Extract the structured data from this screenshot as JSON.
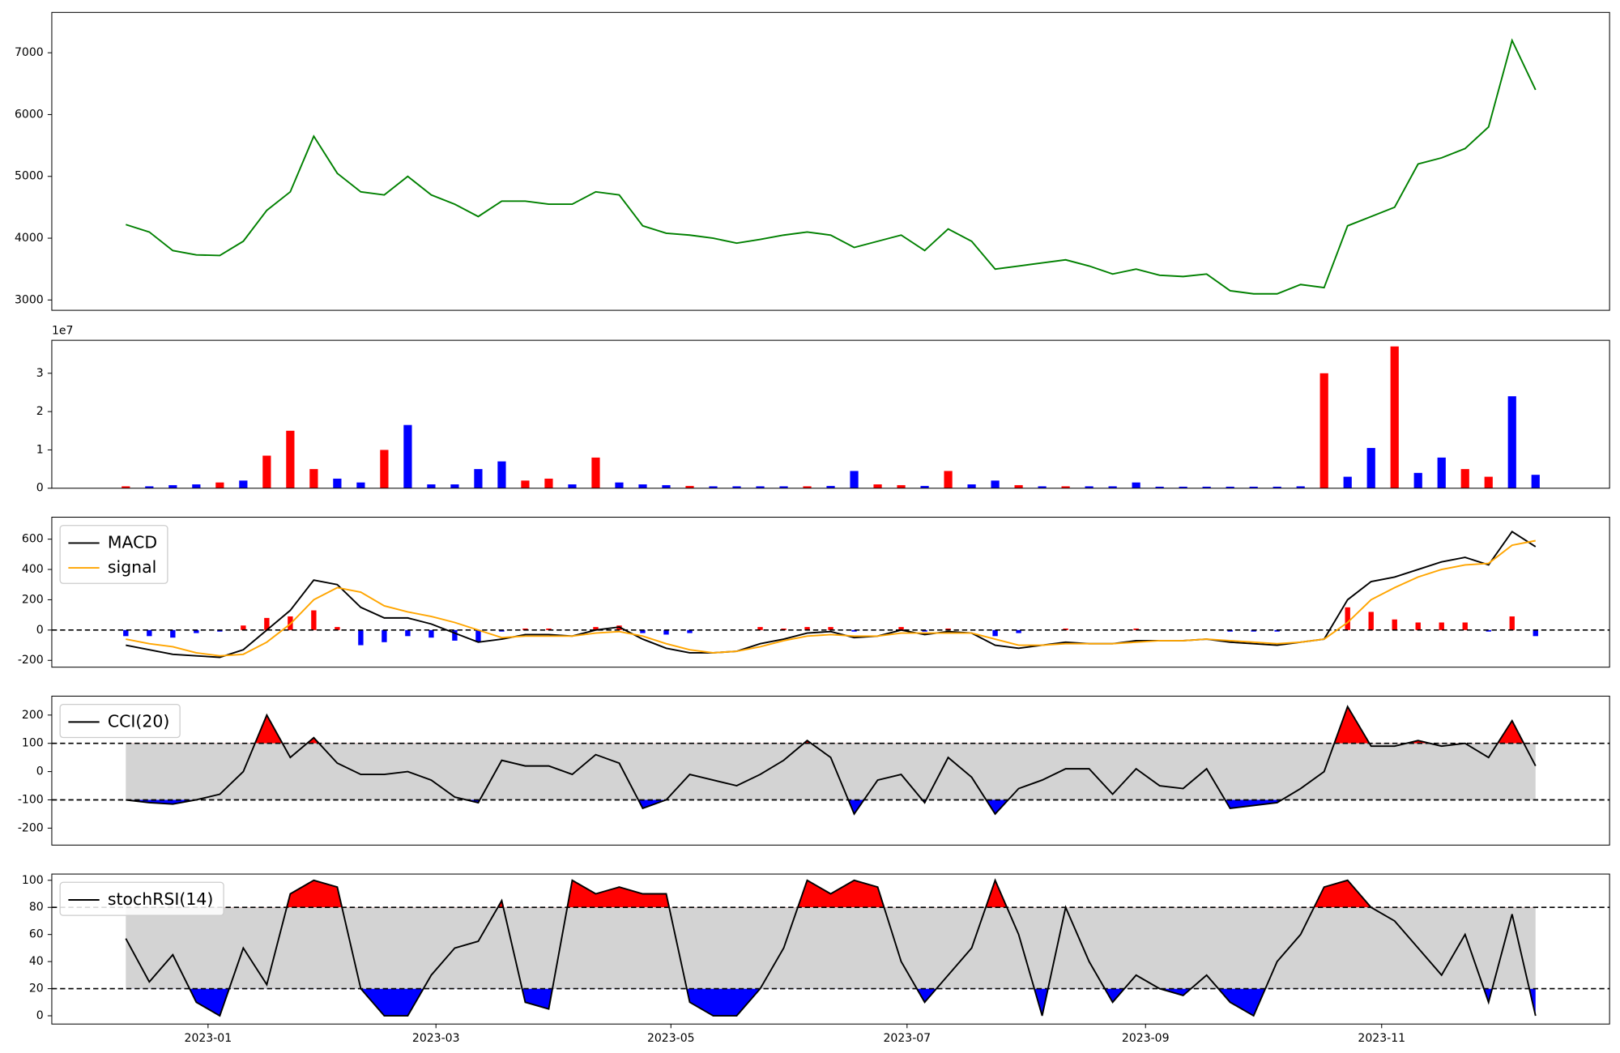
{
  "chart_data": [
    {
      "type": "line",
      "color": "green",
      "x": [
        -0.7,
        -0.5,
        -0.3,
        -0.1,
        0.1,
        0.3,
        0.5,
        0.7,
        0.9,
        1.1,
        1.3,
        1.5,
        1.7,
        1.9,
        2.1,
        2.3,
        2.5,
        2.7,
        2.9,
        3.1,
        3.3,
        3.5,
        3.7,
        3.9,
        4.1,
        4.3,
        4.5,
        4.7,
        4.9,
        5.1,
        5.3,
        5.5,
        5.7,
        5.9,
        6.1,
        6.3,
        6.5,
        6.7,
        6.9,
        7.1,
        7.3,
        7.5,
        7.7,
        7.9,
        8.1,
        8.3,
        8.5,
        8.7,
        8.9,
        9.1,
        9.3,
        9.5,
        9.7,
        9.9,
        10.1,
        10.3,
        10.5,
        10.7,
        10.9,
        11.1,
        11.3
      ],
      "values": [
        4220,
        4100,
        3800,
        3730,
        3720,
        3950,
        4450,
        4750,
        5650,
        5050,
        4750,
        4700,
        5000,
        4700,
        4550,
        4350,
        4600,
        4600,
        4550,
        4550,
        4750,
        4700,
        4200,
        4080,
        4050,
        4000,
        3920,
        3980,
        4050,
        4100,
        4050,
        3850,
        3950,
        4050,
        3800,
        4150,
        3950,
        3500,
        3550,
        3600,
        3650,
        3550,
        3420,
        3500,
        3400,
        3380,
        3420,
        3150,
        3100,
        3100,
        3250,
        3200,
        4200,
        4350,
        4500,
        5200,
        5300,
        5450,
        5800,
        7200,
        6400
      ],
      "xlim": [
        -1.33,
        11.93
      ],
      "ylim": [
        2833,
        7653
      ],
      "yticks": [
        3000,
        4000,
        5000,
        6000,
        7000
      ]
    },
    {
      "type": "bar",
      "offset_label": "1e7",
      "x": [
        -0.7,
        -0.5,
        -0.3,
        -0.1,
        0.1,
        0.3,
        0.5,
        0.7,
        0.9,
        1.1,
        1.3,
        1.5,
        1.7,
        1.9,
        2.1,
        2.3,
        2.5,
        2.7,
        2.9,
        3.1,
        3.3,
        3.5,
        3.7,
        3.9,
        4.1,
        4.3,
        4.5,
        4.7,
        4.9,
        5.1,
        5.3,
        5.5,
        5.7,
        5.9,
        6.1,
        6.3,
        6.5,
        6.7,
        6.9,
        7.1,
        7.3,
        7.5,
        7.7,
        7.9,
        8.1,
        8.3,
        8.5,
        8.7,
        8.9,
        9.1,
        9.3,
        9.5,
        9.7,
        9.9,
        10.1,
        10.3,
        10.5,
        10.7,
        10.9,
        11.1,
        11.3
      ],
      "values": [
        0.05,
        0.05,
        0.08,
        0.1,
        0.15,
        0.2,
        0.85,
        1.5,
        0.5,
        0.25,
        0.15,
        1.0,
        1.65,
        0.1,
        0.1,
        0.5,
        0.7,
        0.2,
        0.25,
        0.1,
        0.8,
        0.15,
        0.1,
        0.08,
        0.06,
        0.05,
        0.05,
        0.05,
        0.05,
        0.05,
        0.06,
        0.45,
        0.1,
        0.08,
        0.06,
        0.45,
        0.1,
        0.2,
        0.08,
        0.05,
        0.05,
        0.05,
        0.05,
        0.15,
        0.04,
        0.04,
        0.04,
        0.04,
        0.04,
        0.04,
        0.05,
        3.0,
        0.3,
        1.05,
        3.7,
        0.4,
        0.8,
        0.5,
        0.3,
        2.4,
        0.35
      ],
      "colors": [
        "red",
        "blue",
        "blue",
        "blue",
        "red",
        "blue",
        "red",
        "red",
        "red",
        "blue",
        "blue",
        "red",
        "blue",
        "blue",
        "blue",
        "blue",
        "blue",
        "red",
        "red",
        "blue",
        "red",
        "blue",
        "blue",
        "blue",
        "red",
        "blue",
        "blue",
        "blue",
        "blue",
        "red",
        "blue",
        "blue",
        "red",
        "red",
        "blue",
        "red",
        "blue",
        "blue",
        "red",
        "blue",
        "red",
        "blue",
        "blue",
        "blue",
        "blue",
        "blue",
        "blue",
        "blue",
        "blue",
        "blue",
        "blue",
        "red",
        "blue",
        "blue",
        "red",
        "blue",
        "blue",
        "red",
        "red",
        "blue",
        "blue"
      ],
      "xlim": [
        -1.33,
        11.93
      ],
      "ylim": [
        0,
        3.86
      ],
      "yticks": [
        0,
        1,
        2,
        3
      ]
    },
    {
      "type": "line",
      "legend": "upper left",
      "hlines": [
        0
      ],
      "x": [
        -0.7,
        -0.5,
        -0.3,
        -0.1,
        0.1,
        0.3,
        0.5,
        0.7,
        0.9,
        1.1,
        1.3,
        1.5,
        1.7,
        1.9,
        2.1,
        2.3,
        2.5,
        2.7,
        2.9,
        3.1,
        3.3,
        3.5,
        3.7,
        3.9,
        4.1,
        4.3,
        4.5,
        4.7,
        4.9,
        5.1,
        5.3,
        5.5,
        5.7,
        5.9,
        6.1,
        6.3,
        6.5,
        6.7,
        6.9,
        7.1,
        7.3,
        7.5,
        7.7,
        7.9,
        8.1,
        8.3,
        8.5,
        8.7,
        8.9,
        9.1,
        9.3,
        9.5,
        9.7,
        9.9,
        10.1,
        10.3,
        10.5,
        10.7,
        10.9,
        11.1,
        11.3
      ],
      "series": [
        {
          "name": "MACD",
          "color": "black",
          "values": [
            -100,
            -130,
            -160,
            -170,
            -180,
            -130,
            0,
            130,
            330,
            300,
            150,
            80,
            80,
            40,
            -20,
            -80,
            -60,
            -30,
            -30,
            -40,
            0,
            20,
            -60,
            -120,
            -150,
            -150,
            -140,
            -90,
            -60,
            -20,
            -10,
            -50,
            -40,
            0,
            -30,
            -10,
            -20,
            -100,
            -120,
            -100,
            -80,
            -90,
            -90,
            -70,
            -70,
            -70,
            -60,
            -80,
            -90,
            -100,
            -80,
            -60,
            200,
            320,
            350,
            400,
            450,
            480,
            430,
            650,
            550
          ]
        },
        {
          "name": "signal",
          "color": "orange",
          "values": [
            -60,
            -90,
            -110,
            -150,
            -170,
            -160,
            -80,
            40,
            200,
            280,
            250,
            160,
            120,
            90,
            50,
            0,
            -50,
            -40,
            -40,
            -40,
            -20,
            -10,
            -40,
            -90,
            -130,
            -150,
            -140,
            -110,
            -70,
            -40,
            -30,
            -40,
            -40,
            -20,
            -20,
            -20,
            -20,
            -60,
            -100,
            -100,
            -90,
            -90,
            -90,
            -80,
            -70,
            -70,
            -60,
            -70,
            -80,
            -90,
            -80,
            -60,
            50,
            200,
            280,
            350,
            400,
            430,
            440,
            560,
            590
          ]
        }
      ],
      "histogram": {
        "up_color": "red",
        "down_color": "blue",
        "values": [
          -40,
          -40,
          -50,
          -20,
          -10,
          30,
          80,
          90,
          130,
          20,
          -100,
          -80,
          -40,
          -50,
          -70,
          -80,
          -10,
          10,
          10,
          0,
          20,
          30,
          -20,
          -30,
          -20,
          0,
          0,
          20,
          10,
          20,
          20,
          -10,
          0,
          20,
          -10,
          10,
          0,
          -40,
          -20,
          0,
          10,
          0,
          0,
          10,
          0,
          0,
          0,
          -10,
          -10,
          -10,
          0,
          0,
          150,
          120,
          70,
          50,
          50,
          50,
          -10,
          90,
          -40
        ]
      },
      "xlim": [
        -1.33,
        11.93
      ],
      "ylim": [
        -245,
        745
      ],
      "yticks": [
        -200,
        0,
        200,
        400,
        600
      ]
    },
    {
      "type": "line",
      "legend": "upper left",
      "hlines": [
        -100,
        100
      ],
      "band_color": "lightgray",
      "above_color": "red",
      "below_color": "blue",
      "x": [
        -0.7,
        -0.5,
        -0.3,
        -0.1,
        0.1,
        0.3,
        0.5,
        0.7,
        0.9,
        1.1,
        1.3,
        1.5,
        1.7,
        1.9,
        2.1,
        2.3,
        2.5,
        2.7,
        2.9,
        3.1,
        3.3,
        3.5,
        3.7,
        3.9,
        4.1,
        4.3,
        4.5,
        4.7,
        4.9,
        5.1,
        5.3,
        5.5,
        5.7,
        5.9,
        6.1,
        6.3,
        6.5,
        6.7,
        6.9,
        7.1,
        7.3,
        7.5,
        7.7,
        7.9,
        8.1,
        8.3,
        8.5,
        8.7,
        8.9,
        9.1,
        9.3,
        9.5,
        9.7,
        9.9,
        10.1,
        10.3,
        10.5,
        10.7,
        10.9,
        11.1,
        11.3
      ],
      "series": [
        {
          "name": "CCI(20)",
          "color": "black",
          "values": [
            -100,
            -110,
            -115,
            -100,
            -80,
            0,
            200,
            50,
            120,
            30,
            -10,
            -10,
            0,
            -30,
            -90,
            -110,
            40,
            20,
            20,
            -10,
            60,
            30,
            -130,
            -100,
            -10,
            -30,
            -50,
            -10,
            40,
            110,
            50,
            -150,
            -30,
            -10,
            -110,
            50,
            -20,
            -150,
            -60,
            -30,
            10,
            10,
            -80,
            10,
            -50,
            -60,
            10,
            -130,
            -120,
            -110,
            -60,
            0,
            230,
            90,
            90,
            110,
            90,
            100,
            50,
            180,
            20
          ]
        }
      ],
      "xlim": [
        -1.33,
        11.93
      ],
      "ylim": [
        -260,
        267
      ],
      "yticks": [
        -200,
        -100,
        0,
        100,
        200
      ]
    },
    {
      "type": "line",
      "legend": "upper left",
      "hlines": [
        20,
        80
      ],
      "band_color": "lightgray",
      "above_color": "red",
      "below_color": "blue",
      "x": [
        -0.7,
        -0.5,
        -0.3,
        -0.1,
        0.1,
        0.3,
        0.5,
        0.7,
        0.9,
        1.1,
        1.3,
        1.5,
        1.7,
        1.9,
        2.1,
        2.3,
        2.5,
        2.7,
        2.9,
        3.1,
        3.3,
        3.5,
        3.7,
        3.9,
        4.1,
        4.3,
        4.5,
        4.7,
        4.9,
        5.1,
        5.3,
        5.5,
        5.7,
        5.9,
        6.1,
        6.3,
        6.5,
        6.7,
        6.9,
        7.1,
        7.3,
        7.5,
        7.7,
        7.9,
        8.1,
        8.3,
        8.5,
        8.7,
        8.9,
        9.1,
        9.3,
        9.5,
        9.7,
        9.9,
        10.1,
        10.3,
        10.5,
        10.7,
        10.9,
        11.1,
        11.3
      ],
      "series": [
        {
          "name": "stochRSI(14)",
          "color": "black",
          "values": [
            57,
            25,
            45,
            10,
            0,
            50,
            23,
            90,
            100,
            95,
            20,
            0,
            0,
            30,
            50,
            55,
            85,
            10,
            5,
            100,
            90,
            95,
            90,
            90,
            10,
            0,
            0,
            20,
            50,
            100,
            90,
            100,
            95,
            40,
            10,
            30,
            50,
            100,
            60,
            0,
            80,
            40,
            10,
            30,
            20,
            15,
            30,
            10,
            0,
            40,
            60,
            95,
            100,
            80,
            70,
            50,
            30,
            60,
            10,
            75,
            0
          ]
        }
      ],
      "xlim": [
        -1.33,
        11.93
      ],
      "ylim": [
        -6.1,
        104.6
      ],
      "yticks": [
        0,
        20,
        40,
        60,
        80,
        100
      ],
      "xticks": [
        {
          "value": 0,
          "label": "2023-01"
        },
        {
          "value": 1.94,
          "label": "2023-03"
        },
        {
          "value": 3.94,
          "label": "2023-05"
        },
        {
          "value": 5.95,
          "label": "2023-07"
        },
        {
          "value": 7.98,
          "label": "2023-09"
        },
        {
          "value": 9.99,
          "label": "2023-11"
        }
      ]
    }
  ]
}
